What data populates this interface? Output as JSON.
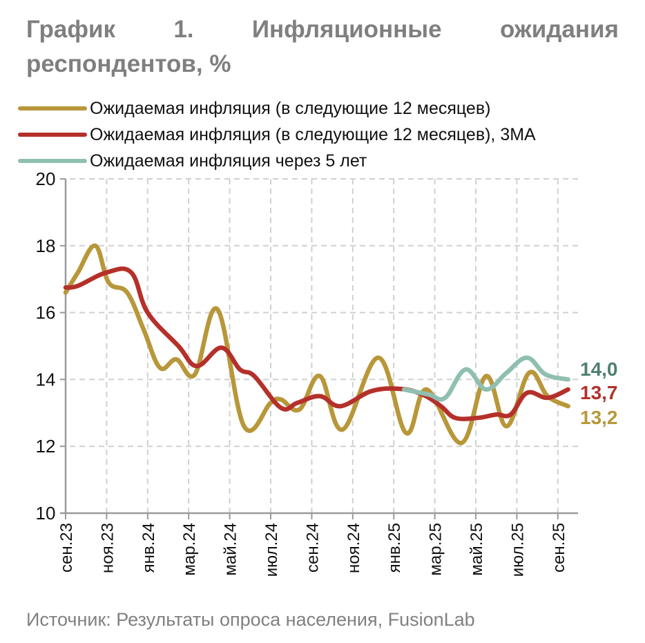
{
  "title_line1": [
    "График",
    "1.",
    "Инфляционные",
    "ожидания"
  ],
  "title_line2": "респондентов, %",
  "source": "Источник: Результаты опроса населения, FusionLab",
  "chart_data": {
    "type": "line",
    "title": "График 1. Инфляционные ожидания респондентов, %",
    "xlabel": "",
    "ylabel": "%",
    "ylim": [
      10,
      20
    ],
    "yticks": [
      10,
      12,
      14,
      16,
      18,
      20
    ],
    "x_unit": "months since сен.23",
    "xticks": [
      {
        "pos": 0,
        "label": "сен.23"
      },
      {
        "pos": 2,
        "label": "ноя.23"
      },
      {
        "pos": 4,
        "label": "янв.24"
      },
      {
        "pos": 6,
        "label": "мар.24"
      },
      {
        "pos": 8,
        "label": "май.24"
      },
      {
        "pos": 10,
        "label": "июл.24"
      },
      {
        "pos": 12,
        "label": "сен.24"
      },
      {
        "pos": 14,
        "label": "ноя.24"
      },
      {
        "pos": 16,
        "label": "янв.25"
      },
      {
        "pos": 18,
        "label": "мар.25"
      },
      {
        "pos": 20,
        "label": "май.25"
      },
      {
        "pos": 22,
        "label": "июл.25"
      },
      {
        "pos": 24,
        "label": "сен.25"
      }
    ],
    "grid": true,
    "legend_position": "top-left",
    "series": [
      {
        "name": "Ожидаемая инфляция (в следующие 12 месяцев)",
        "color": "#b8973a",
        "end_label": "13,2",
        "label_color": "#b8973a",
        "points": [
          [
            0,
            16.6
          ],
          [
            0.6,
            17.2
          ],
          [
            1.45,
            18.0
          ],
          [
            2.1,
            16.9
          ],
          [
            3.0,
            16.6
          ],
          [
            3.8,
            15.5
          ],
          [
            4.6,
            14.35
          ],
          [
            5.4,
            14.6
          ],
          [
            6.3,
            14.15
          ],
          [
            7.4,
            16.1
          ],
          [
            8.7,
            12.6
          ],
          [
            10.0,
            13.3
          ],
          [
            10.5,
            13.4
          ],
          [
            11.4,
            13.1
          ],
          [
            12.4,
            14.1
          ],
          [
            13.5,
            12.5
          ],
          [
            15.25,
            14.65
          ],
          [
            16.6,
            12.4
          ],
          [
            17.6,
            13.7
          ],
          [
            19.3,
            12.1
          ],
          [
            20.5,
            14.1
          ],
          [
            21.5,
            12.6
          ],
          [
            22.6,
            14.2
          ],
          [
            23.5,
            13.5
          ],
          [
            24.5,
            13.2
          ]
        ]
      },
      {
        "name": "Ожидаемая инфляция (в следующие 12 месяцев), 3МА",
        "color": "#b5302a",
        "end_label": "13,7",
        "label_color": "#b5302a",
        "points": [
          [
            0,
            16.75
          ],
          [
            0.6,
            16.8
          ],
          [
            2.0,
            17.2
          ],
          [
            3.2,
            17.2
          ],
          [
            4.0,
            16.0
          ],
          [
            5.5,
            15.0
          ],
          [
            6.4,
            14.4
          ],
          [
            7.6,
            14.95
          ],
          [
            8.5,
            14.3
          ],
          [
            9.2,
            14.1
          ],
          [
            10.5,
            13.15
          ],
          [
            11.3,
            13.3
          ],
          [
            12.4,
            13.5
          ],
          [
            13.4,
            13.2
          ],
          [
            14.9,
            13.65
          ],
          [
            16.3,
            13.72
          ],
          [
            17.4,
            13.55
          ],
          [
            18.3,
            13.2
          ],
          [
            19.0,
            12.85
          ],
          [
            20.1,
            12.85
          ],
          [
            21.0,
            12.95
          ],
          [
            21.7,
            12.95
          ],
          [
            22.5,
            13.6
          ],
          [
            23.5,
            13.45
          ],
          [
            24.5,
            13.7
          ]
        ]
      },
      {
        "name": "Ожидаемая инфляция через 5 лет",
        "color": "#8fbfb0",
        "end_label": "14,0",
        "label_color": "#4f7f6f",
        "points": [
          [
            16.5,
            13.7
          ],
          [
            17.7,
            13.55
          ],
          [
            18.5,
            13.45
          ],
          [
            19.5,
            14.3
          ],
          [
            20.5,
            13.7
          ],
          [
            21.5,
            14.2
          ],
          [
            22.5,
            14.65
          ],
          [
            23.4,
            14.15
          ],
          [
            24.5,
            14.0
          ]
        ]
      }
    ]
  }
}
